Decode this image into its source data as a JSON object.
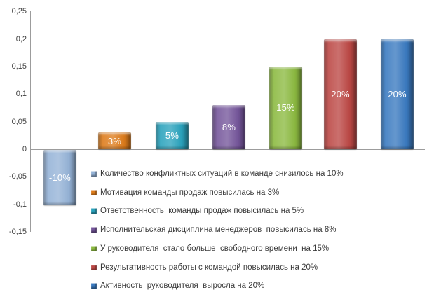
{
  "chart_data": {
    "type": "bar",
    "title": "",
    "xlabel": "",
    "ylabel": "",
    "ylim": [
      -0.15,
      0.25
    ],
    "grid": false,
    "background": "#FFFFFF",
    "axis_color": "#9C9C9C",
    "legend_position": "inside-bottom-right",
    "decimal_separator": ",",
    "y_ticks": [
      {
        "label": "0,25",
        "value": 0.25
      },
      {
        "label": "0,2",
        "value": 0.2
      },
      {
        "label": "0,15",
        "value": 0.15
      },
      {
        "label": "0,1",
        "value": 0.1
      },
      {
        "label": "0,05",
        "value": 0.05
      },
      {
        "label": "0",
        "value": 0
      },
      {
        "label": "-0,05",
        "value": -0.05
      },
      {
        "label": "-0,1",
        "value": -0.1
      },
      {
        "label": "-0,15",
        "value": -0.15
      }
    ],
    "series": [
      {
        "name": "Количество конфликтных ситуаций в команде снизилось на 10%",
        "value": -0.1,
        "bar_label": "-10%",
        "color": "#95B3D7"
      },
      {
        "name": "Мотивация команды продаж повысилась на 3%",
        "value": 0.03,
        "bar_label": "3%",
        "color": "#DE7C1B"
      },
      {
        "name": "Ответственность  команды продаж повысилась на 5%",
        "value": 0.05,
        "bar_label": "5%",
        "color": "#2BA3BD"
      },
      {
        "name": "Исполнительская дисциплина менеджеров  повысилась на 8%",
        "value": 0.08,
        "bar_label": "8%",
        "color": "#75569B"
      },
      {
        "name": "У руководителя  стало больше  свободного времени  на 15%",
        "value": 0.15,
        "bar_label": "15%",
        "color": "#8CBA41"
      },
      {
        "name": "Результативность работы с командой повысилась на 20%",
        "value": 0.2,
        "bar_label": "20%",
        "color": "#BC4845"
      },
      {
        "name": "Активность  руководителя  выросла на 20%",
        "value": 0.2,
        "bar_label": "20%",
        "color": "#3A7AC0"
      }
    ]
  }
}
